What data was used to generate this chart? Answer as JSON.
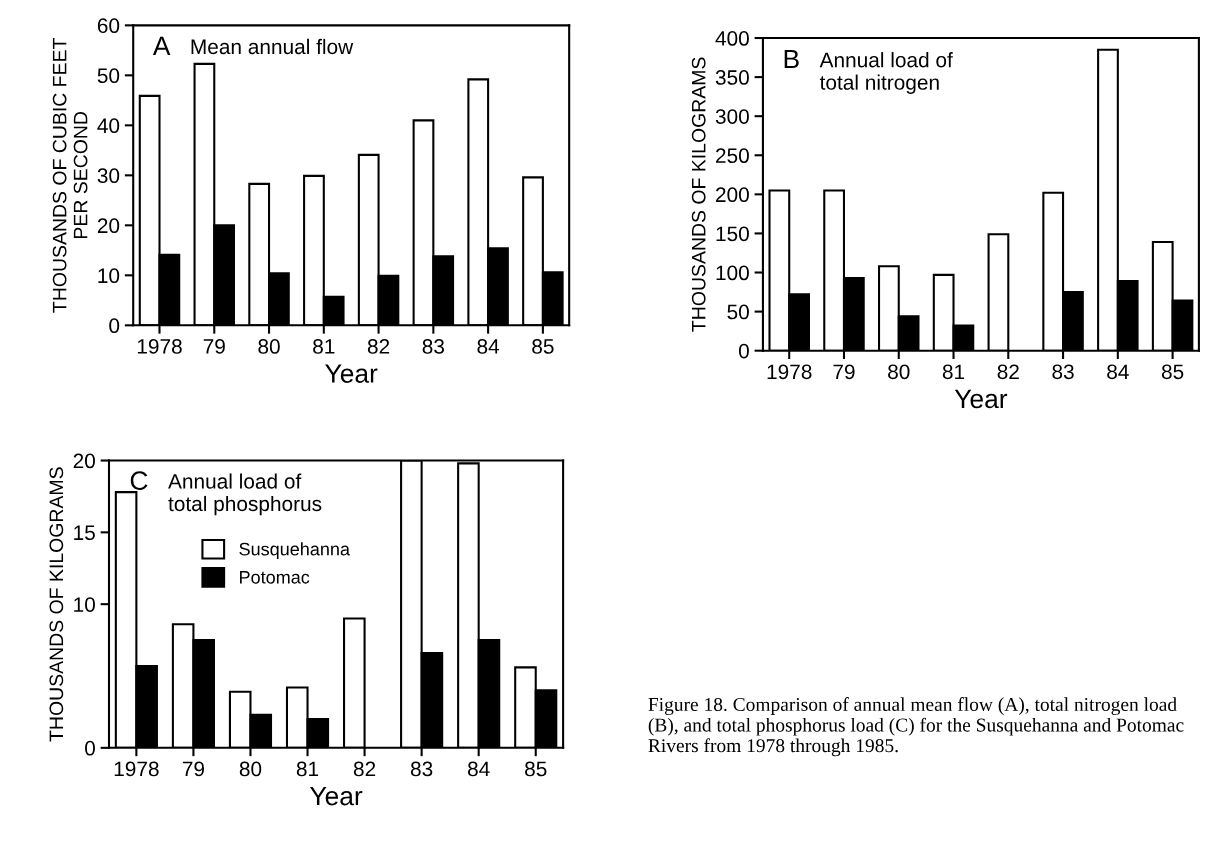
{
  "chart_data": [
    {
      "type": "bar",
      "title": "Mean annual flow",
      "annotations": [
        "A"
      ],
      "xlabel": "Year",
      "ylabel": "THOUSANDS OF CUBIC FEET\nPER SECOND",
      "categories": [
        "1978",
        "79",
        "80",
        "81",
        "82",
        "83",
        "84",
        "85"
      ],
      "series": [
        {
          "color": "#ffffff",
          "values": [
            45.9,
            52.3,
            28.3,
            29.9,
            34.1,
            41.0,
            49.2,
            29.6
          ]
        },
        {
          "color": "#000000",
          "values": [
            14.1,
            20.0,
            10.4,
            5.7,
            9.9,
            13.8,
            15.4,
            10.6
          ]
        }
      ],
      "ylim": [
        0,
        60
      ],
      "yticks": [
        0,
        10,
        20,
        30,
        40,
        50,
        60
      ],
      "grid": false
    },
    {
      "type": "bar",
      "title": "Annual load of\ntotal nitrogen",
      "annotations": [
        "B"
      ],
      "xlabel": "Year",
      "ylabel": "THOUSANDS OF KILOGRAMS",
      "categories": [
        "1978",
        "79",
        "80",
        "81",
        "82",
        "83",
        "84",
        "85"
      ],
      "series": [
        {
          "color": "#ffffff",
          "values": [
            205,
            205,
            108,
            97,
            149,
            202,
            385,
            139
          ]
        },
        {
          "color": "#000000",
          "values": [
            72,
            93,
            44,
            32,
            null,
            75,
            89,
            64
          ]
        }
      ],
      "ylim": [
        0,
        400
      ],
      "yticks": [
        0,
        50,
        100,
        150,
        200,
        250,
        300,
        350,
        400
      ],
      "grid": false
    },
    {
      "type": "bar",
      "title": "Annual load of\ntotal phosphorus",
      "annotations": [
        "C",
        "Figure 18. Comparison of annual mean flow (A), total nitrogen load (B), and total phosphorus load (C) for the Susquehanna and Potomac Rivers from 1978 through 1985."
      ],
      "xlabel": "Year",
      "ylabel": "THOUSANDS OF KILOGRAMS",
      "categories": [
        "1978",
        "79",
        "80",
        "81",
        "82",
        "83",
        "84",
        "85"
      ],
      "series": [
        {
          "name": "Susquehanna",
          "color": "#ffffff",
          "values": [
            17.8,
            8.6,
            3.9,
            4.2,
            9.0,
            20.0,
            19.8,
            5.6
          ]
        },
        {
          "name": "Potomac",
          "color": "#000000",
          "values": [
            5.7,
            7.5,
            2.3,
            2.0,
            null,
            6.6,
            7.5,
            4.0
          ]
        }
      ],
      "ylim": [
        0,
        20
      ],
      "yticks": [
        0,
        10,
        15,
        20
      ],
      "grid": false,
      "legend": "top left"
    }
  ]
}
